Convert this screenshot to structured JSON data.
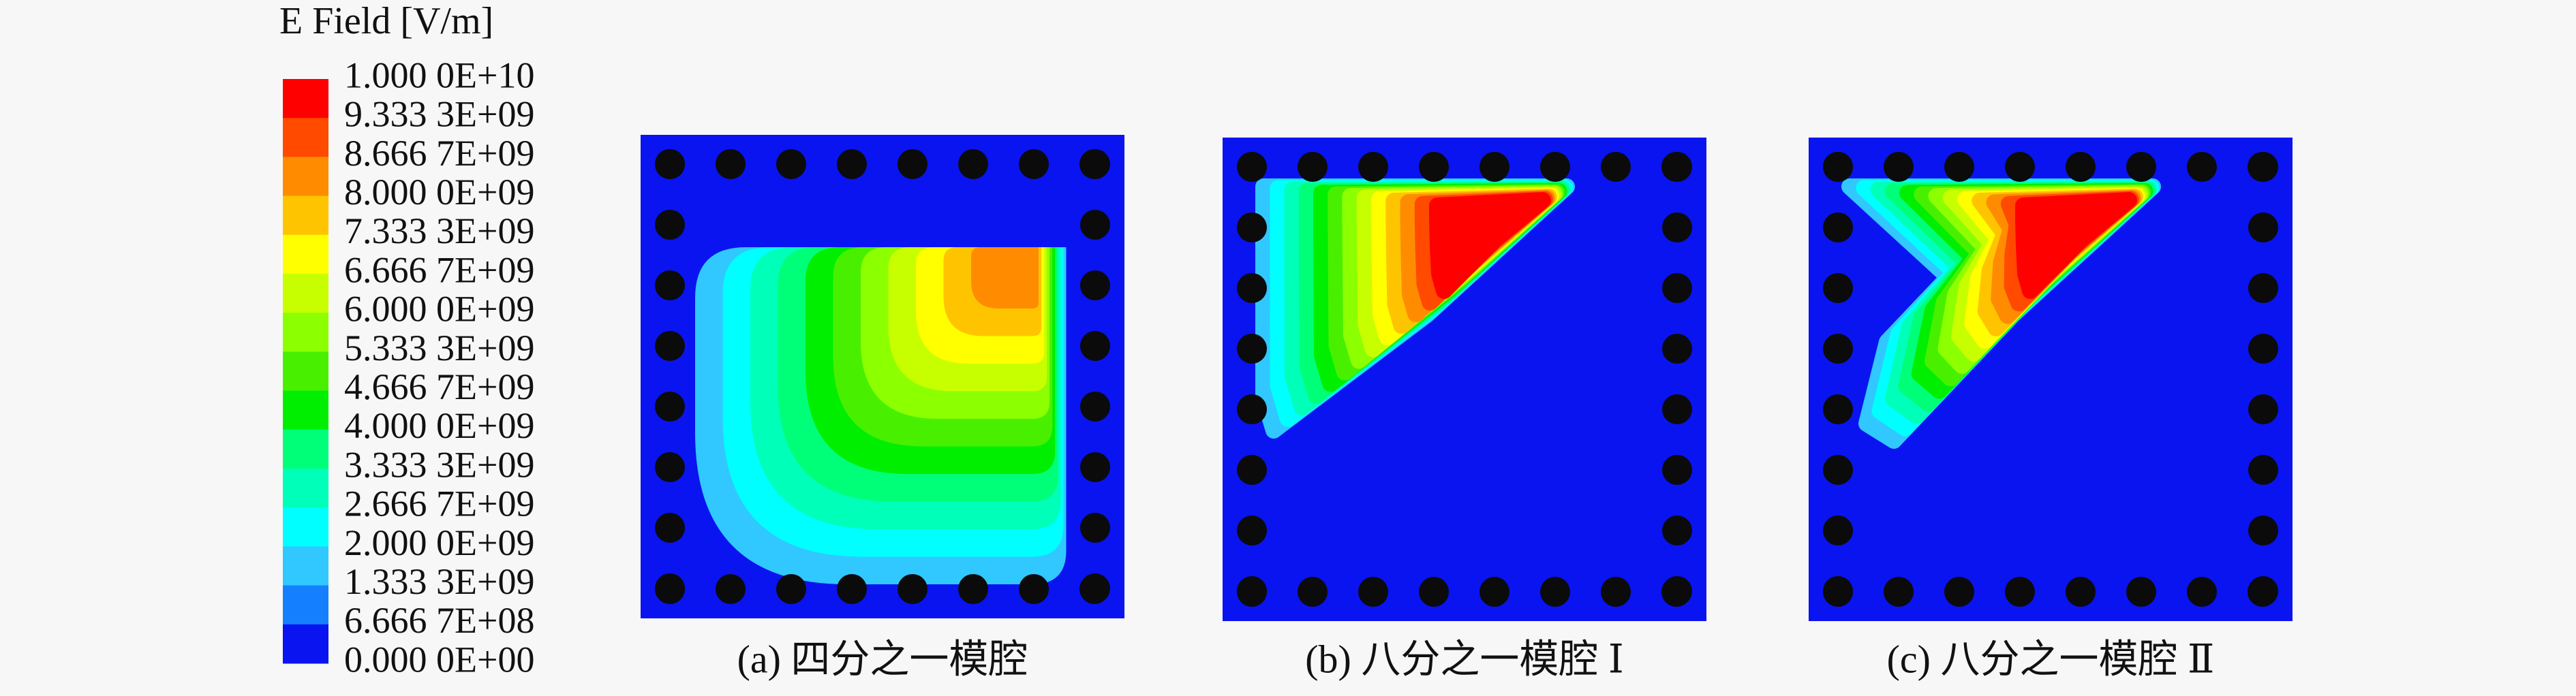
{
  "colorbar": {
    "title": "E Field [V/m]",
    "labels": [
      "1.000 0E+10",
      "9.333 3E+09",
      "8.666 7E+09",
      "8.000 0E+09",
      "7.333 3E+09",
      "6.666 7E+09",
      "6.000 0E+09",
      "5.333 3E+09",
      "4.666 7E+09",
      "4.000 0E+09",
      "3.333 3E+09",
      "2.666 7E+09",
      "2.000 0E+09",
      "1.333 3E+09",
      "6.666 7E+08",
      "0.000 0E+00"
    ],
    "colors": [
      "#ff0000",
      "#ff4a00",
      "#ff8c00",
      "#ffc400",
      "#ffff00",
      "#c8ff00",
      "#8cff00",
      "#48f000",
      "#00ee00",
      "#00ff78",
      "#00ffb8",
      "#00ffff",
      "#30c8ff",
      "#1480ff",
      "#0a14f0"
    ]
  },
  "panels": [
    {
      "caption": "(a) 四分之一模腔"
    },
    {
      "caption": "(b) 八分之一模腔 Ⅰ"
    },
    {
      "caption": "(c) 八分之一模腔 Ⅱ"
    }
  ]
}
